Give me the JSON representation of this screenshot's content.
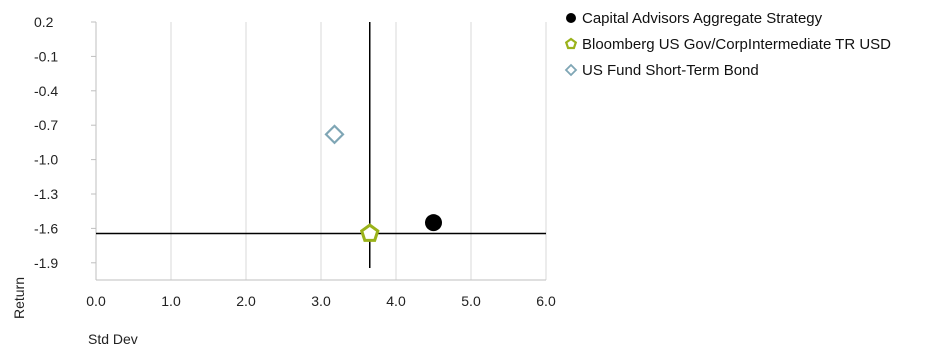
{
  "chart_data": {
    "type": "scatter",
    "xlabel": "Std Dev",
    "ylabel": "Return",
    "xlim": [
      0,
      6
    ],
    "ylim": [
      -2.05,
      0.2
    ],
    "x_ticks": [
      0,
      1,
      2,
      3,
      4,
      5,
      6
    ],
    "x_tick_labels": [
      "0.0",
      "1.0",
      "2.0",
      "3.0",
      "4.0",
      "5.0",
      "6.0"
    ],
    "y_ticks": [
      0.2,
      -0.1,
      -0.4,
      -0.7,
      -1.0,
      -1.3,
      -1.6,
      -1.9
    ],
    "y_tick_labels": [
      "0.2",
      "-0.1",
      "-0.4",
      "-0.7",
      "-1.0",
      "-1.3",
      "-1.6",
      "-1.9"
    ],
    "grid": "vertical",
    "legend_position": "right",
    "reference_lines": {
      "x": 3.65,
      "y": -1.645
    },
    "series": [
      {
        "name": "Capital Advisors Aggregate Strategy",
        "marker": "filled-circle",
        "color": "#000000",
        "x": 4.5,
        "y": -1.55
      },
      {
        "name": "Bloomberg US Gov/CorpIntermediate TR USD",
        "marker": "pentagon",
        "color": "#9ab21a",
        "x": 3.65,
        "y": -1.645
      },
      {
        "name": "US Fund Short-Term Bond",
        "marker": "diamond",
        "color": "#7fa6b5",
        "x": 3.18,
        "y": -0.78
      }
    ]
  }
}
